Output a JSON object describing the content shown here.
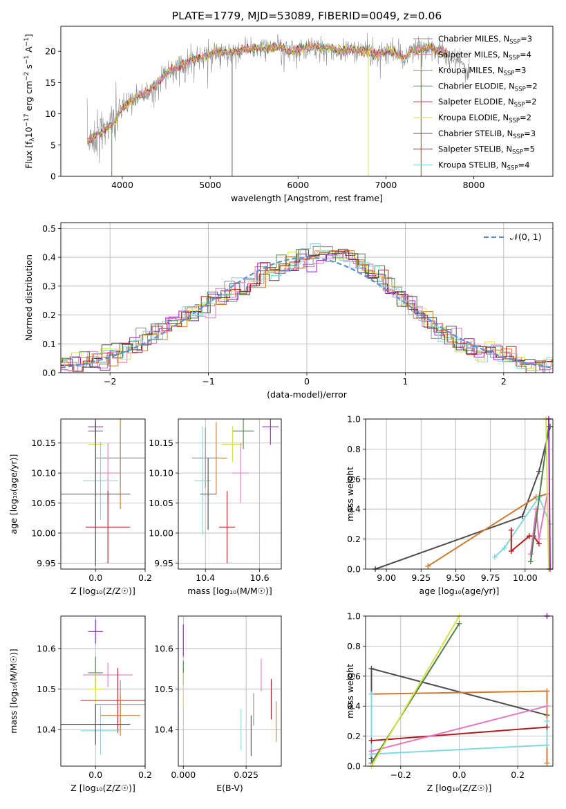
{
  "title": "PLATE=1779, MJD=53089, FIBERID=0049, z=0.06",
  "colors": {
    "Chabrier MILES": "#8c8c8c",
    "Salpeter MILES": "#e377c2",
    "Kroupa MILES": "#d0792c",
    "Chabrier ELODIE": "#4f7f4f",
    "Salpeter ELODIE": "#9b1fc0",
    "Kroupa ELODIE": "#d6e244",
    "Chabrier STELIB": "#4d4d4d",
    "Salpeter STELIB": "#b01c1c",
    "Kroupa STELIB": "#7fd8dc",
    "norm": "#5b8fd6"
  },
  "chart_data": [
    {
      "id": "spectrum",
      "type": "line",
      "xlabel": "wavelength [Angstrom, rest frame]",
      "ylabel": "Flux [f",
      "ylabel_sub": "λ",
      "ylabel_rest1": "10",
      "ylabel_sup1": "−17",
      "ylabel_rest2": " erg cm",
      "ylabel_sup2": "−2",
      "ylabel_rest3": " s",
      "ylabel_sup3": "−1",
      "ylabel_rest4": " A",
      "ylabel_sup4": "−1",
      "ylabel_end": "]",
      "xlim": [
        3300,
        8900
      ],
      "ylim": [
        0,
        24
      ],
      "xticks": [
        "4000",
        "5000",
        "6000",
        "7000",
        "8000"
      ],
      "xtick_values": [
        4000,
        5000,
        6000,
        7000,
        8000
      ],
      "yticks": [
        "0",
        "5",
        "10",
        "15",
        "20"
      ],
      "ytick_values": [
        0,
        5,
        10,
        15,
        20
      ],
      "legend_position": "right",
      "legend": [
        {
          "label": "Chabrier MILES, N",
          "sub": "SSP",
          "tail": "=3",
          "key": "Chabrier MILES"
        },
        {
          "label": "Salpeter MILES, N",
          "sub": "SSP",
          "tail": "=4",
          "key": "Salpeter MILES"
        },
        {
          "label": "Kroupa MILES, N",
          "sub": "SSP",
          "tail": "=3",
          "key": "Kroupa MILES"
        },
        {
          "label": "Chabrier ELODIE, N",
          "sub": "SSP",
          "tail": "=2",
          "key": "Chabrier ELODIE"
        },
        {
          "label": "Salpeter ELODIE, N",
          "sub": "SSP",
          "tail": "=2",
          "key": "Salpeter ELODIE"
        },
        {
          "label": "Kroupa ELODIE, N",
          "sub": "SSP",
          "tail": "=2",
          "key": "Kroupa ELODIE"
        },
        {
          "label": "Chabrier STELIB, N",
          "sub": "SSP",
          "tail": "=3",
          "key": "Chabrier STELIB"
        },
        {
          "label": "Salpeter STELIB, N",
          "sub": "SSP",
          "tail": "=5",
          "key": "Salpeter STELIB"
        },
        {
          "label": "Kroupa STELIB, N",
          "sub": "SSP",
          "tail": "=4",
          "key": "Kroupa STELIB"
        }
      ],
      "continuum": [
        [
          3600,
          5.5
        ],
        [
          3700,
          6.5
        ],
        [
          3800,
          7.5
        ],
        [
          3900,
          8.5
        ],
        [
          4000,
          11
        ],
        [
          4100,
          12
        ],
        [
          4200,
          13
        ],
        [
          4300,
          13.5
        ],
        [
          4400,
          15
        ],
        [
          4500,
          16.5
        ],
        [
          4600,
          17.3
        ],
        [
          4700,
          18
        ],
        [
          4800,
          18.8
        ],
        [
          4900,
          19
        ],
        [
          5000,
          19.5
        ],
        [
          5100,
          20
        ],
        [
          5200,
          19.8
        ],
        [
          5300,
          20
        ],
        [
          5400,
          20.3
        ],
        [
          5500,
          20.5
        ],
        [
          5600,
          20.5
        ],
        [
          5700,
          20.6
        ],
        [
          5800,
          20.8
        ],
        [
          5900,
          20
        ],
        [
          6000,
          20.3
        ],
        [
          6100,
          20.6
        ],
        [
          6200,
          20.8
        ],
        [
          6300,
          20.5
        ],
        [
          6400,
          20.4
        ],
        [
          6500,
          20
        ],
        [
          6600,
          20.3
        ],
        [
          6700,
          20.2
        ],
        [
          6800,
          20
        ],
        [
          6900,
          19.5
        ],
        [
          7000,
          20
        ],
        [
          7100,
          19.8
        ],
        [
          7200,
          19
        ],
        [
          7300,
          20
        ],
        [
          7400,
          20.3
        ],
        [
          7500,
          20.7
        ],
        [
          7600,
          20
        ],
        [
          7700,
          19.5
        ],
        [
          7800,
          18.2
        ],
        [
          7900,
          17.5
        ],
        [
          7950,
          17
        ]
      ]
    },
    {
      "id": "residuals",
      "type": "histogram",
      "xlabel": "(data-model)/error",
      "ylabel": "Normed distribution",
      "xlim": [
        -2.5,
        2.5
      ],
      "ylim": [
        0,
        0.52
      ],
      "xticks": [
        "−2",
        "−1",
        "0",
        "1",
        "2"
      ],
      "xtick_values": [
        -2,
        -1,
        0,
        1,
        2
      ],
      "yticks": [
        "0.0",
        "0.1",
        "0.2",
        "0.3",
        "0.4",
        "0.5"
      ],
      "ytick_values": [
        0,
        0.1,
        0.2,
        0.3,
        0.4,
        0.5
      ],
      "grid": true,
      "legend_position": "top-right",
      "legend_label": "𝒩(0, 1)",
      "bin_width": 0.1
    },
    {
      "id": "age_vs_Z",
      "type": "scatter",
      "xlabel": "Z [log₁₀(Z/Z☉)]",
      "ylabel": "age  [log₁₀(age/yr)]",
      "xlim": [
        -0.14,
        0.2
      ],
      "ylim": [
        9.94,
        10.19
      ],
      "xticks": [
        "0.0",
        "0.2"
      ],
      "xtick_values": [
        0,
        0.2
      ],
      "yticks": [
        "9.95",
        "10.00",
        "10.05",
        "10.10",
        "10.15"
      ],
      "ytick_values": [
        9.95,
        10.0,
        10.05,
        10.1,
        10.15
      ],
      "grid": true,
      "points": [
        {
          "key": "Salpeter ELODIE",
          "x": 0.0,
          "xerr": 0.03,
          "y": 10.177,
          "yerr": 0.015
        },
        {
          "key": "Chabrier ELODIE",
          "x": 0.0,
          "xerr": 0.03,
          "y": 10.17,
          "yerr": 0.015
        },
        {
          "key": "Kroupa ELODIE",
          "x": 0.0,
          "xerr": 0.03,
          "y": 10.148,
          "yerr": 0.012
        },
        {
          "key": "Kroupa MILES",
          "x": 0.1,
          "xerr": 0.08,
          "y": 10.125,
          "yerr": 0.085
        },
        {
          "key": "Chabrier MILES",
          "x": 0.1,
          "xerr": 0.1,
          "y": 10.125,
          "yerr": 0.05
        },
        {
          "key": "Salpeter MILES",
          "x": 0.05,
          "xerr": 0.05,
          "y": 10.1,
          "yerr": 0.05
        },
        {
          "key": "Kroupa STELIB",
          "x": 0.02,
          "xerr": 0.07,
          "y": 10.087,
          "yerr": 0.065
        },
        {
          "key": "Chabrier STELIB",
          "x": 0.0,
          "xerr": 0.14,
          "y": 10.065,
          "yerr": 0.12
        },
        {
          "key": "Salpeter STELIB",
          "x": 0.05,
          "xerr": 0.09,
          "y": 10.01,
          "yerr": 0.06
        }
      ]
    },
    {
      "id": "age_vs_mass",
      "type": "scatter",
      "xlabel": "mass [log₁₀(M/M☉)]",
      "xlim": [
        10.3,
        10.68
      ],
      "ylim": [
        9.94,
        10.19
      ],
      "xticks": [
        "10.4",
        "10.6"
      ],
      "xtick_values": [
        10.4,
        10.6
      ],
      "yticks": [
        "9.95",
        "10.00",
        "10.05",
        "10.10",
        "10.15"
      ],
      "ytick_values": [
        9.95,
        10.0,
        10.05,
        10.1,
        10.15
      ],
      "grid": true,
      "points": [
        {
          "key": "Salpeter ELODIE",
          "x": 10.64,
          "xerr": 0.03,
          "y": 10.177,
          "yerr": 0.03
        },
        {
          "key": "Chabrier ELODIE",
          "x": 10.54,
          "xerr": 0.04,
          "y": 10.17,
          "yerr": 0.03
        },
        {
          "key": "Kroupa ELODIE",
          "x": 10.5,
          "xerr": 0.04,
          "y": 10.148,
          "yerr": 0.03
        },
        {
          "key": "Kroupa MILES",
          "x": 10.44,
          "xerr": 0.04,
          "y": 10.125,
          "yerr": 0.06
        },
        {
          "key": "Chabrier MILES",
          "x": 10.4,
          "xerr": 0.05,
          "y": 10.125,
          "yerr": 0.05
        },
        {
          "key": "Salpeter MILES",
          "x": 10.53,
          "xerr": 0.03,
          "y": 10.1,
          "yerr": 0.05
        },
        {
          "key": "Kroupa STELIB",
          "x": 10.39,
          "xerr": 0.03,
          "y": 10.087,
          "yerr": 0.09
        },
        {
          "key": "Chabrier STELIB",
          "x": 10.41,
          "xerr": 0.03,
          "y": 10.065,
          "yerr": 0.06
        },
        {
          "key": "Salpeter STELIB",
          "x": 10.48,
          "xerr": 0.03,
          "y": 10.01,
          "yerr": 0.06
        }
      ]
    },
    {
      "id": "weight_vs_age",
      "type": "line",
      "xlabel": "age  [log₁₀(age/yr)]",
      "ylabel": "mass weight",
      "xlim": [
        8.85,
        10.2
      ],
      "ylim": [
        0,
        1
      ],
      "xticks": [
        "9.00",
        "9.25",
        "9.50",
        "9.75",
        "10.00"
      ],
      "xtick_values": [
        9.0,
        9.25,
        9.5,
        9.75,
        10.0
      ],
      "yticks": [
        "0.0",
        "0.2",
        "0.4",
        "0.6",
        "0.8",
        "1.0"
      ],
      "ytick_values": [
        0,
        0.2,
        0.4,
        0.6,
        0.8,
        1.0
      ],
      "grid": true,
      "series": [
        {
          "key": "Chabrier STELIB",
          "x": [
            8.92,
            9.98,
            10.1,
            10.18
          ],
          "y": [
            0.0,
            0.35,
            0.65,
            0.95
          ]
        },
        {
          "key": "Kroupa MILES",
          "x": [
            9.3,
            10.08,
            10.16
          ],
          "y": [
            0.02,
            0.48,
            0.5
          ]
        },
        {
          "key": "Kroupa STELIB",
          "x": [
            9.78,
            9.85,
            10.1,
            10.18
          ],
          "y": [
            0.08,
            0.14,
            0.48,
            0.3
          ]
        },
        {
          "key": "Salpeter STELIB",
          "x": [
            9.9,
            9.9,
            10.03,
            10.06,
            10.1
          ],
          "y": [
            0.26,
            0.12,
            0.22,
            0.22,
            0.17
          ]
        },
        {
          "key": "Salpeter MILES",
          "x": [
            10.04,
            10.08,
            10.1,
            10.16
          ],
          "y": [
            0.1,
            0.4,
            0.2,
            0.5
          ]
        },
        {
          "key": "Chabrier ELODIE",
          "x": [
            10.04,
            10.17
          ],
          "y": [
            0.05,
            0.95
          ]
        },
        {
          "key": "Kroupa ELODIE",
          "x": [
            10.15,
            10.17
          ],
          "y": [
            1.0,
            0.0
          ]
        },
        {
          "key": "Salpeter ELODIE",
          "x": [
            10.17,
            10.18
          ],
          "y": [
            1.0,
            0.0
          ]
        }
      ]
    },
    {
      "id": "mass_vs_Z",
      "type": "scatter",
      "xlabel": "Z [log₁₀(Z/Z☉)]",
      "ylabel": "mass [log₁₀(M/M☉)]",
      "xlim": [
        -0.14,
        0.2
      ],
      "ylim": [
        10.31,
        10.68
      ],
      "xticks": [
        "0.0",
        "0.2"
      ],
      "xtick_values": [
        0,
        0.2
      ],
      "yticks": [
        "10.4",
        "10.5",
        "10.6"
      ],
      "ytick_values": [
        10.4,
        10.5,
        10.6
      ],
      "grid": true,
      "points": [
        {
          "key": "Salpeter ELODIE",
          "x": 0.0,
          "xerr": 0.03,
          "y": 10.642,
          "yerr": 0.03
        },
        {
          "key": "Chabrier ELODIE",
          "x": 0.0,
          "xerr": 0.03,
          "y": 10.54,
          "yerr": 0.04
        },
        {
          "key": "Kroupa ELODIE",
          "x": 0.0,
          "xerr": 0.03,
          "y": 10.5,
          "yerr": 0.04
        },
        {
          "key": "Salpeter MILES",
          "x": 0.05,
          "xerr": 0.1,
          "y": 10.535,
          "yerr": 0.03
        },
        {
          "key": "Salpeter STELIB",
          "x": 0.09,
          "xerr": 0.15,
          "y": 10.472,
          "yerr": 0.08
        },
        {
          "key": "Chabrier MILES",
          "x": 0.1,
          "xerr": 0.1,
          "y": 10.462,
          "yerr": 0.06
        },
        {
          "key": "Kroupa MILES",
          "x": 0.1,
          "xerr": 0.08,
          "y": 10.435,
          "yerr": 0.05
        },
        {
          "key": "Kroupa STELIB",
          "x": 0.02,
          "xerr": 0.08,
          "y": 10.397,
          "yerr": 0.06
        },
        {
          "key": "Chabrier STELIB",
          "x": 0.0,
          "xerr": 0.14,
          "y": 10.413,
          "yerr": 0.05
        }
      ]
    },
    {
      "id": "mass_vs_ebv",
      "type": "scatter",
      "xlabel": "E(B-V)",
      "xlim": [
        -0.002,
        0.039
      ],
      "ylim": [
        10.31,
        10.68
      ],
      "xticks": [
        "0.000",
        "0.025"
      ],
      "xtick_values": [
        0,
        0.025
      ],
      "yticks": [
        "10.4",
        "10.5",
        "10.6"
      ],
      "ytick_values": [
        10.4,
        10.5,
        10.6
      ],
      "grid": true,
      "points": [
        {
          "key": "Salpeter ELODIE",
          "x": 0.0,
          "xerr": 0,
          "y": 10.62,
          "yerr": 0.04
        },
        {
          "key": "Chabrier ELODIE",
          "x": 0.0,
          "xerr": 0,
          "y": 10.54,
          "yerr": 0.03
        },
        {
          "key": "Kroupa ELODIE",
          "x": 0.0,
          "xerr": 0,
          "y": 10.5,
          "yerr": 0.04
        },
        {
          "key": "Salpeter MILES",
          "x": 0.031,
          "xerr": 0,
          "y": 10.535,
          "yerr": 0.04
        },
        {
          "key": "Salpeter STELIB",
          "x": 0.035,
          "xerr": 0,
          "y": 10.475,
          "yerr": 0.05
        },
        {
          "key": "Chabrier MILES",
          "x": 0.028,
          "xerr": 0,
          "y": 10.45,
          "yerr": 0.04
        },
        {
          "key": "Kroupa MILES",
          "x": 0.037,
          "xerr": 0,
          "y": 10.42,
          "yerr": 0.05
        },
        {
          "key": "Kroupa STELIB",
          "x": 0.023,
          "xerr": 0,
          "y": 10.4,
          "yerr": 0.05
        },
        {
          "key": "Chabrier STELIB",
          "x": 0.027,
          "xerr": 0,
          "y": 10.385,
          "yerr": 0.05
        }
      ]
    },
    {
      "id": "weight_vs_Z",
      "type": "line",
      "xlabel": "Z [log₁₀(Z/Z☉)]",
      "ylabel": "mass weight",
      "xlim": [
        -0.32,
        0.32
      ],
      "ylim": [
        0,
        1
      ],
      "xticks": [
        "−0.2",
        "0.0",
        "0.2"
      ],
      "xtick_values": [
        -0.2,
        0,
        0.2
      ],
      "yticks": [
        "0.0",
        "0.2",
        "0.4",
        "0.6",
        "0.8",
        "1.0"
      ],
      "ytick_values": [
        0,
        0.2,
        0.4,
        0.6,
        0.8,
        1.0
      ],
      "grid": true,
      "series": [
        {
          "key": "Chabrier STELIB",
          "x": [
            -0.3,
            -0.3,
            0.3
          ],
          "y": [
            0.05,
            0.65,
            0.34
          ]
        },
        {
          "key": "Kroupa MILES",
          "x": [
            -0.3,
            0.3,
            0.3
          ],
          "y": [
            0.48,
            0.5,
            0.02
          ]
        },
        {
          "key": "Kroupa STELIB",
          "x": [
            -0.3,
            -0.3,
            0.3,
            0.3
          ],
          "y": [
            0.48,
            0.08,
            0.14,
            0.3
          ]
        },
        {
          "key": "Salpeter STELIB",
          "x": [
            -0.3,
            0.3
          ],
          "y": [
            0.17,
            0.26
          ]
        },
        {
          "key": "Salpeter MILES",
          "x": [
            -0.3,
            0.3
          ],
          "y": [
            0.1,
            0.4
          ]
        },
        {
          "key": "Chabrier ELODIE",
          "x": [
            -0.3,
            0.0
          ],
          "y": [
            0.02,
            0.95
          ]
        },
        {
          "key": "Kroupa ELODIE",
          "x": [
            -0.3,
            0.0
          ],
          "y": [
            0.0,
            1.0
          ]
        },
        {
          "key": "Salpeter ELODIE",
          "x": [
            0.3
          ],
          "y": [
            1.0
          ]
        }
      ]
    }
  ]
}
